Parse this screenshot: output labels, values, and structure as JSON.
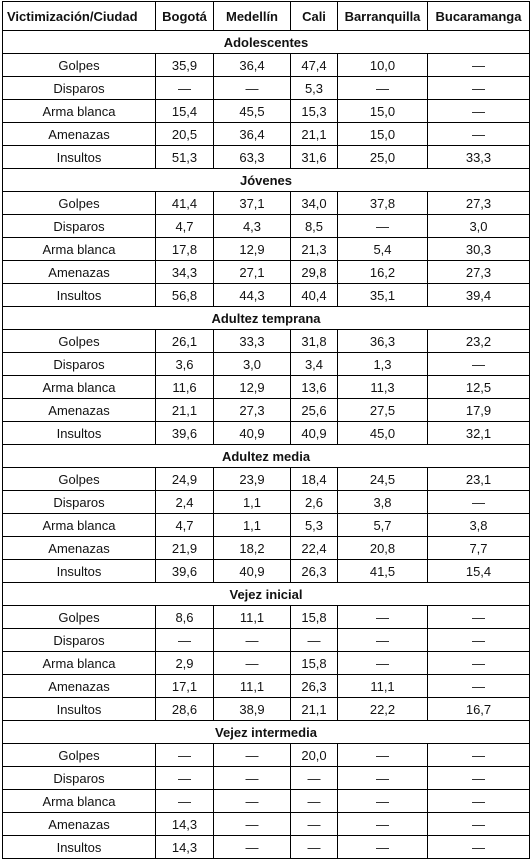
{
  "table": {
    "header": [
      "Victimización/Ciudad",
      "Bogotá",
      "Medellín",
      "Cali",
      "Barranquilla",
      "Bucaramanga"
    ],
    "sections": [
      {
        "title": "Adolescentes",
        "rows": [
          [
            "Golpes",
            "35,9",
            "36,4",
            "47,4",
            "10,0",
            "—"
          ],
          [
            "Disparos",
            "—",
            "—",
            "5,3",
            "—",
            "—"
          ],
          [
            "Arma blanca",
            "15,4",
            "45,5",
            "15,3",
            "15,0",
            "—"
          ],
          [
            "Amenazas",
            "20,5",
            "36,4",
            "21,1",
            "15,0",
            "—"
          ],
          [
            "Insultos",
            "51,3",
            "63,3",
            "31,6",
            "25,0",
            "33,3"
          ]
        ]
      },
      {
        "title": "Jóvenes",
        "rows": [
          [
            "Golpes",
            "41,4",
            "37,1",
            "34,0",
            "37,8",
            "27,3"
          ],
          [
            "Disparos",
            "4,7",
            "4,3",
            "8,5",
            "—",
            "3,0"
          ],
          [
            "Arma blanca",
            "17,8",
            "12,9",
            "21,3",
            "5,4",
            "30,3"
          ],
          [
            "Amenazas",
            "34,3",
            "27,1",
            "29,8",
            "16,2",
            "27,3"
          ],
          [
            "Insultos",
            "56,8",
            "44,3",
            "40,4",
            "35,1",
            "39,4"
          ]
        ]
      },
      {
        "title": "Adultez temprana",
        "rows": [
          [
            "Golpes",
            "26,1",
            "33,3",
            "31,8",
            "36,3",
            "23,2"
          ],
          [
            "Disparos",
            "3,6",
            "3,0",
            "3,4",
            "1,3",
            "—"
          ],
          [
            "Arma blanca",
            "11,6",
            "12,9",
            "13,6",
            "11,3",
            "12,5"
          ],
          [
            "Amenazas",
            "21,1",
            "27,3",
            "25,6",
            "27,5",
            "17,9"
          ],
          [
            "Insultos",
            "39,6",
            "40,9",
            "40,9",
            "45,0",
            "32,1"
          ]
        ]
      },
      {
        "title": "Adultez media",
        "rows": [
          [
            "Golpes",
            "24,9",
            "23,9",
            "18,4",
            "24,5",
            "23,1"
          ],
          [
            "Disparos",
            "2,4",
            "1,1",
            "2,6",
            "3,8",
            "—"
          ],
          [
            "Arma blanca",
            "4,7",
            "1,1",
            "5,3",
            "5,7",
            "3,8"
          ],
          [
            "Amenazas",
            "21,9",
            "18,2",
            "22,4",
            "20,8",
            "7,7"
          ],
          [
            "Insultos",
            "39,6",
            "40,9",
            "26,3",
            "41,5",
            "15,4"
          ]
        ]
      },
      {
        "title": "Vejez inicial",
        "rows": [
          [
            "Golpes",
            "8,6",
            "11,1",
            "15,8",
            "—",
            "—"
          ],
          [
            "Disparos",
            "—",
            "—",
            "—",
            "—",
            "—"
          ],
          [
            "Arma blanca",
            "2,9",
            "—",
            "15,8",
            "—",
            "—"
          ],
          [
            "Amenazas",
            "17,1",
            "11,1",
            "26,3",
            "11,1",
            "—"
          ],
          [
            "Insultos",
            "28,6",
            "38,9",
            "21,1",
            "22,2",
            "16,7"
          ]
        ]
      },
      {
        "title": "Vejez intermedia",
        "rows": [
          [
            "Golpes",
            "—",
            "—",
            "20,0",
            "—",
            "—"
          ],
          [
            "Disparos",
            "—",
            "—",
            "—",
            "—",
            "—"
          ],
          [
            "Arma blanca",
            "—",
            "—",
            "—",
            "—",
            "—"
          ],
          [
            "Amenazas",
            "14,3",
            "—",
            "—",
            "—",
            "—"
          ],
          [
            "Insultos",
            "14,3",
            "—",
            "—",
            "—",
            "—"
          ]
        ]
      }
    ]
  }
}
